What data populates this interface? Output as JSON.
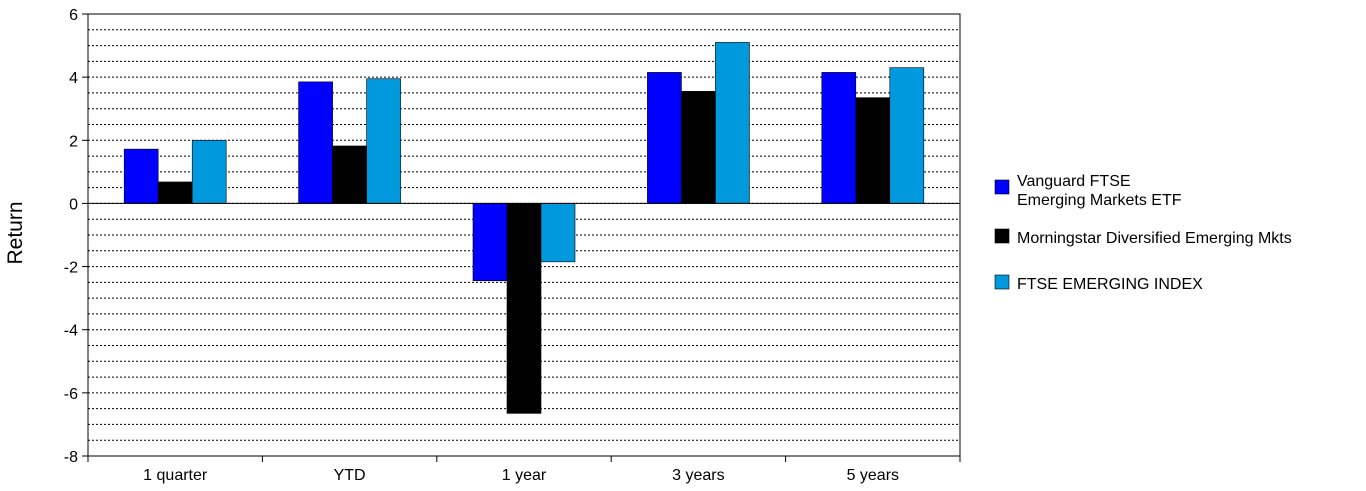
{
  "chart_data": {
    "type": "bar",
    "title": "",
    "xlabel": "",
    "ylabel": "Return",
    "ylim": [
      -8,
      6
    ],
    "yticks": [
      6,
      4,
      2,
      0,
      -2,
      -4,
      -6,
      -8
    ],
    "grid": "horizontal dotted",
    "legend_position": "right",
    "categories": [
      "1 quarter",
      "YTD",
      "1 year",
      "3 years",
      "5 years"
    ],
    "series": [
      {
        "name": "Vanguard FTSE Emerging Markets ETF",
        "legend_lines": [
          "Vanguard FTSE",
          "Emerging Markets ETF"
        ],
        "color": "#0000ff",
        "values": [
          1.72,
          3.85,
          -2.45,
          4.15,
          4.15
        ]
      },
      {
        "name": "Morningstar Diversified Emerging Mkts",
        "legend_lines": [
          "Morningstar Diversified Emerging Mkts"
        ],
        "color": "#000000",
        "values": [
          0.68,
          1.82,
          -6.65,
          3.55,
          3.35
        ]
      },
      {
        "name": "FTSE EMERGING INDEX",
        "legend_lines": [
          "FTSE EMERGING INDEX"
        ],
        "color": "#0099dd",
        "values": [
          2.0,
          3.95,
          -1.85,
          5.1,
          4.3
        ]
      }
    ]
  }
}
